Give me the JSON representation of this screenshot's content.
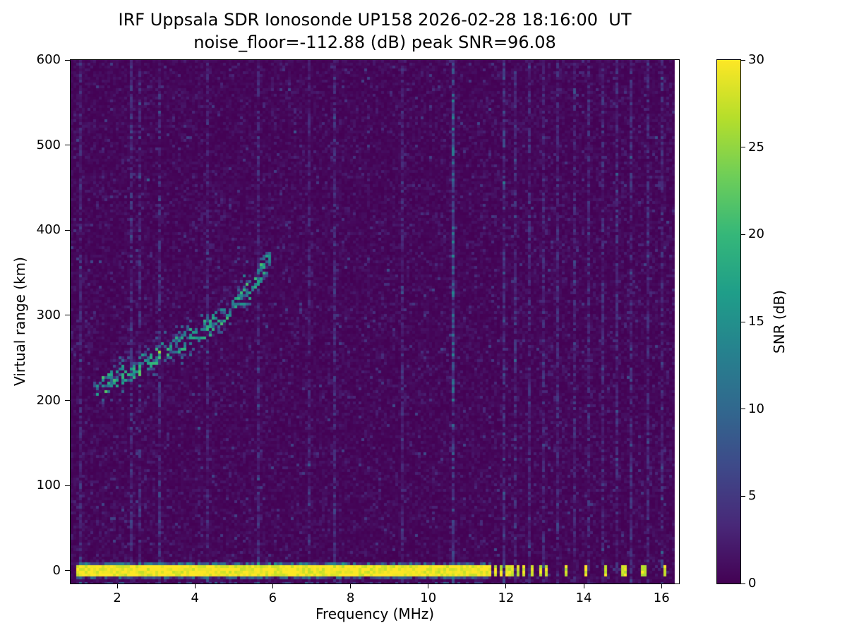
{
  "chart_data": {
    "type": "heatmap",
    "title": "IRF Uppsala SDR Ionosonde UP158 2026-02-28 18:16:00  UT",
    "subtitle": "noise_floor=-112.88 (dB) peak SNR=96.08",
    "xlabel": "Frequency (MHz)",
    "ylabel": "Virtual range (km)",
    "xlim": [
      0.8,
      16.45
    ],
    "ylim": [
      -15,
      600
    ],
    "xticks": [
      2,
      4,
      6,
      8,
      10,
      12,
      14,
      16
    ],
    "yticks": [
      0,
      100,
      200,
      300,
      400,
      500,
      600
    ],
    "grid": false,
    "colorbar": {
      "label": "SNR (dB)",
      "min": 0,
      "max": 30,
      "ticks": [
        0,
        5,
        10,
        15,
        20,
        25,
        30
      ],
      "colormap": "viridis"
    },
    "background_snr_db": [
      0,
      3
    ],
    "data_right_edge_mhz": 16.31,
    "ground_pulse": {
      "range_km": 0,
      "thickness_km": 14,
      "freq_start_mhz": 0.95,
      "freq_solid_end_mhz": 11.62,
      "snr_db": 30,
      "blip_freqs_mhz": [
        11.72,
        11.84,
        11.97,
        12.1,
        12.26,
        12.45,
        12.66,
        12.85,
        13.02,
        13.5,
        14.0,
        14.55,
        15.0,
        15.5,
        16.03
      ]
    },
    "echo_trace": {
      "points_mhz_km": [
        [
          1.4,
          213
        ],
        [
          1.7,
          220
        ],
        [
          2.0,
          228
        ],
        [
          2.4,
          237
        ],
        [
          2.8,
          248
        ],
        [
          3.2,
          258
        ],
        [
          3.6,
          267
        ],
        [
          4.0,
          277
        ],
        [
          4.4,
          289
        ],
        [
          4.8,
          302
        ],
        [
          5.2,
          320
        ],
        [
          5.5,
          337
        ],
        [
          5.7,
          352
        ],
        [
          5.9,
          368
        ]
      ],
      "snr_db_range": [
        6,
        20
      ]
    },
    "rfi_stripes_mhz": [
      {
        "f": 1.05,
        "s": 5
      },
      {
        "f": 2.35,
        "s": 6
      },
      {
        "f": 2.55,
        "s": 5
      },
      {
        "f": 3.05,
        "s": 6
      },
      {
        "f": 4.3,
        "s": 4
      },
      {
        "f": 5.6,
        "s": 5
      },
      {
        "f": 6.9,
        "s": 4
      },
      {
        "f": 7.55,
        "s": 5
      },
      {
        "f": 9.3,
        "s": 4
      },
      {
        "f": 10.65,
        "s": 9,
        "boost_range": [
          200,
          560
        ],
        "boost": 5
      },
      {
        "f": 11.9,
        "s": 7
      },
      {
        "f": 12.2,
        "s": 5
      },
      {
        "f": 12.6,
        "s": 5
      },
      {
        "f": 12.95,
        "s": 5
      },
      {
        "f": 13.3,
        "s": 5
      },
      {
        "f": 13.7,
        "s": 5
      },
      {
        "f": 14.1,
        "s": 5
      },
      {
        "f": 14.45,
        "s": 5
      },
      {
        "f": 14.8,
        "s": 5
      },
      {
        "f": 15.2,
        "s": 5
      },
      {
        "f": 15.6,
        "s": 5
      },
      {
        "f": 15.95,
        "s": 5
      }
    ],
    "viridis_hex": [
      "#440154",
      "#482878",
      "#3e4989",
      "#31688e",
      "#26828e",
      "#1f9e89",
      "#35b779",
      "#6ece58",
      "#b5de2b",
      "#fde725"
    ]
  }
}
